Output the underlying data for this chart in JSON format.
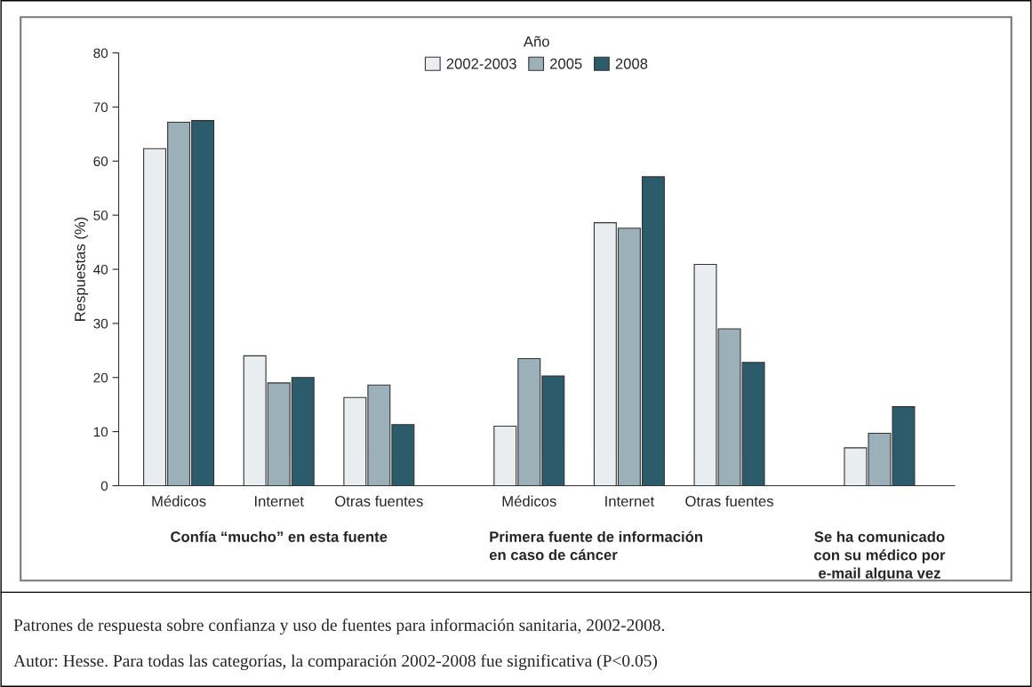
{
  "chart_data": {
    "type": "bar",
    "categories": [
      "Médicos",
      "Internet",
      "Otras fuentes",
      "Médicos",
      "Internet",
      "Otras fuentes",
      null
    ],
    "series": [
      {
        "name": "2002-2003",
        "color": "#e9edf0",
        "values": [
          62.3,
          24.0,
          16.3,
          11.0,
          48.6,
          40.9,
          7.0
        ]
      },
      {
        "name": "2005",
        "color": "#9bb0b9",
        "values": [
          67.2,
          19.0,
          18.6,
          23.5,
          47.6,
          29.0,
          9.7
        ]
      },
      {
        "name": "2008",
        "color": "#2c5b6b",
        "values": [
          67.5,
          20.0,
          11.3,
          20.3,
          57.1,
          22.8,
          14.6
        ]
      }
    ],
    "ylabel": "Respuestas (%)",
    "legend_title": "Año",
    "legend": "top",
    "ylim": [
      0,
      80
    ],
    "yticks": [
      0,
      10,
      20,
      30,
      40,
      50,
      60,
      70,
      80
    ],
    "grid": false,
    "annotations": [
      "Confía “mucho” en esta fuente",
      "Primera fuente de información\nen caso de cáncer",
      "Se ha comunicado\ncon su médico por\ne-mail alguna vez",
      "Patrones de respuesta sobre confianza y uso de fuentes para información sanitaria, 2002-2008.",
      "Autor: Hesse. Para todas las categorías, la comparación 2002-2008 fue significativa (P<0.05)"
    ]
  }
}
